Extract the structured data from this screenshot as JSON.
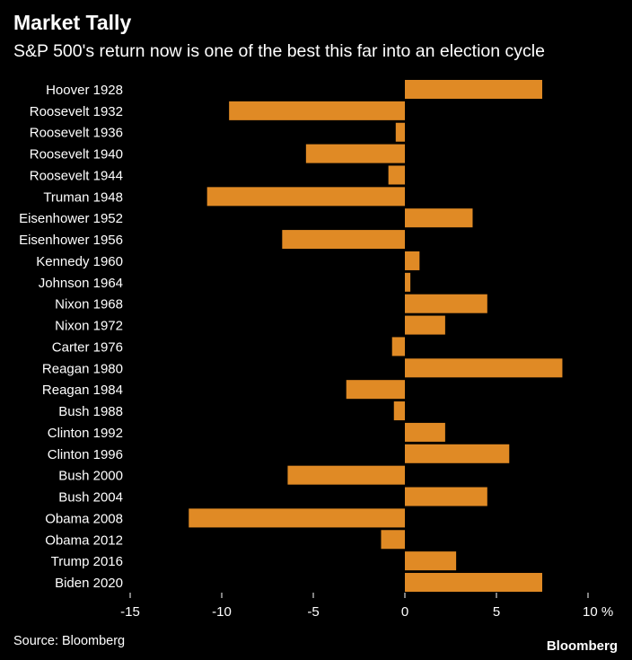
{
  "chart_data": {
    "type": "bar",
    "orientation": "horizontal",
    "title": "Market Tally",
    "subtitle": "S&P 500's return now is one of the best this far into an election cycle",
    "categories": [
      "Hoover 1928",
      "Roosevelt 1932",
      "Roosevelt 1936",
      "Roosevelt 1940",
      "Roosevelt 1944",
      "Truman 1948",
      "Eisenhower 1952",
      "Eisenhower 1956",
      "Kennedy 1960",
      "Johnson 1964",
      "Nixon 1968",
      "Nixon 1972",
      "Carter 1976",
      "Reagan 1980",
      "Reagan 1984",
      "Bush 1988",
      "Clinton 1992",
      "Clinton 1996",
      "Bush 2000",
      "Bush 2004",
      "Obama 2008",
      "Obama 2012",
      "Trump 2016",
      "Biden 2020"
    ],
    "values": [
      7.5,
      -9.6,
      -0.5,
      -5.4,
      -0.9,
      -10.8,
      3.7,
      -6.7,
      0.8,
      0.3,
      4.5,
      2.2,
      -0.7,
      8.6,
      -3.2,
      -0.6,
      2.2,
      5.7,
      -6.4,
      4.5,
      -11.8,
      -1.3,
      2.8,
      7.5
    ],
    "xlim": [
      -15,
      10
    ],
    "xticks": [
      "-15",
      "-10",
      "-5",
      "0",
      "5",
      "10"
    ],
    "xtick_values": [
      -15,
      -10,
      -5,
      0,
      5,
      10
    ],
    "xunit": "%",
    "bar_color": "#e08a25",
    "source": "Source: Bloomberg",
    "brand": "Bloomberg"
  }
}
